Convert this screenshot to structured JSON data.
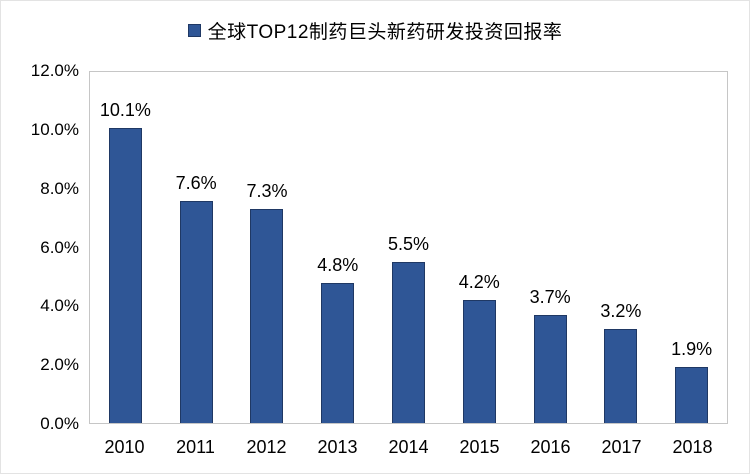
{
  "chart_data": {
    "type": "bar",
    "title": "全球TOP12制药巨头新药研发投资回报率",
    "categories": [
      "2010",
      "2011",
      "2012",
      "2013",
      "2014",
      "2015",
      "2016",
      "2017",
      "2018"
    ],
    "values": [
      10.1,
      7.6,
      7.3,
      4.8,
      5.5,
      4.2,
      3.7,
      3.2,
      1.9
    ],
    "data_labels": [
      "10.1%",
      "7.6%",
      "7.3%",
      "4.8%",
      "5.5%",
      "4.2%",
      "3.7%",
      "3.2%",
      "1.9%"
    ],
    "y_ticks": [
      "12.0%",
      "10.0%",
      "8.0%",
      "6.0%",
      "4.0%",
      "2.0%",
      "0.0%"
    ],
    "ylim": [
      0,
      12
    ],
    "xlabel": "",
    "ylabel": "",
    "grid": false,
    "legend_position": "top-center",
    "colors": {
      "bar_fill": "#2F5696",
      "bar_border": "#1F3864",
      "plot_border": "#c6c6c6",
      "text": "#000000",
      "background": "#ffffff"
    }
  }
}
